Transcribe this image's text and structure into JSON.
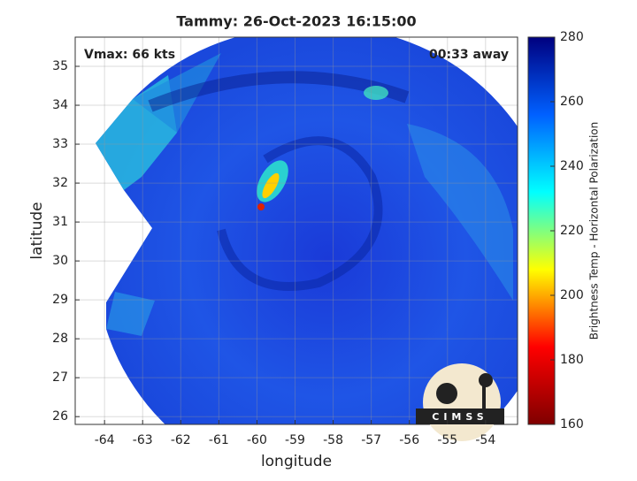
{
  "chart_data": {
    "type": "heatmap",
    "title": "Tammy: 26-Oct-2023 16:15:00",
    "x_label": "longitude",
    "y_label": "latitude",
    "annotations": [
      "Vmax: 66 kts",
      "00:33 away"
    ],
    "xlim": [
      -64.77,
      -53.16
    ],
    "xticks": [
      -64,
      -63,
      -62,
      -61,
      -60,
      -59,
      -58,
      -57,
      -56,
      -55,
      -54
    ],
    "ylim": [
      25.8,
      35.75
    ],
    "yticks": [
      26,
      27,
      28,
      29,
      30,
      31,
      32,
      33,
      34,
      35
    ],
    "grid": true,
    "colorbar": {
      "label": "Brightness Temp - Horizontal Polarization",
      "lim": [
        160,
        280
      ],
      "ticks": [
        160,
        180,
        200,
        220,
        240,
        260,
        280
      ],
      "colors": [
        "#7f0000",
        "#ff0000",
        "#ffff00",
        "#00ffff",
        "#0060ff",
        "#00007f"
      ]
    },
    "logo": "CIMSS"
  }
}
